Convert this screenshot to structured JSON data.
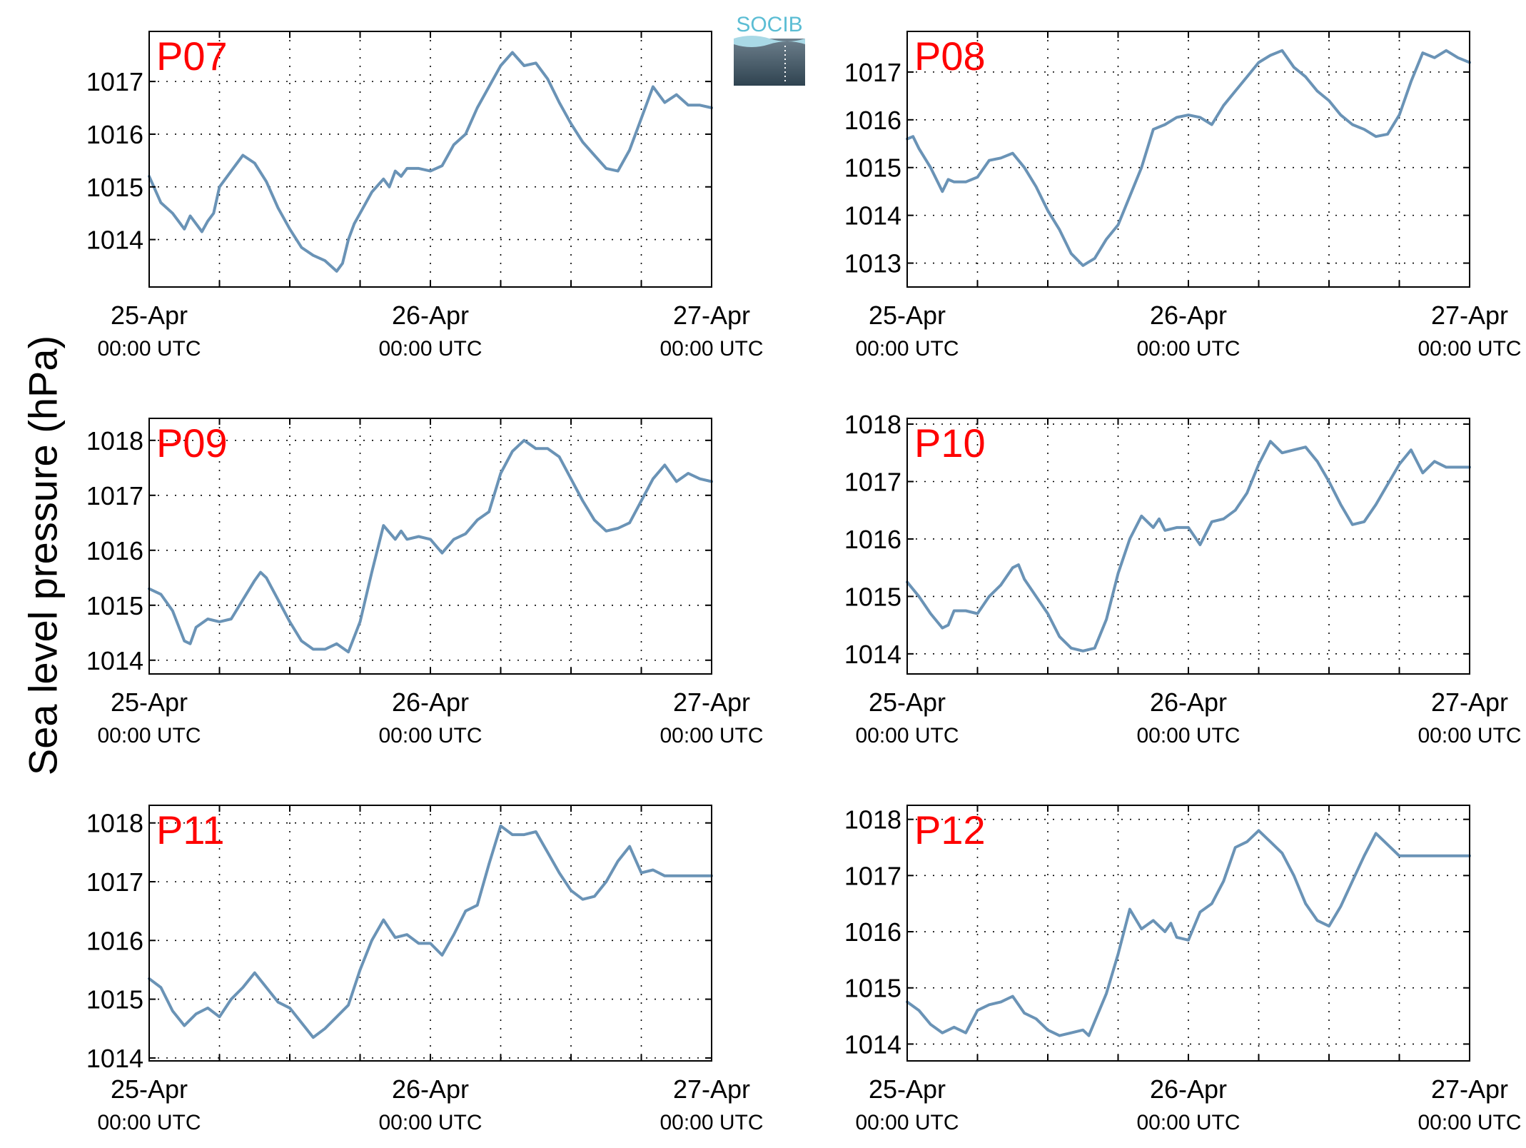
{
  "figure": {
    "ylabel": "Sea level pressure (hPa)",
    "logo": {
      "text": "SOCIB",
      "colors": {
        "text": "#5bbdd4",
        "top": "#6d7f8c",
        "bottom": "#2f4350"
      }
    }
  },
  "style": {
    "line_color": "#6a93b6",
    "label_color": "#ff0000"
  },
  "chart_data": [
    {
      "type": "line",
      "title": "P07",
      "xlabel": "",
      "ylabel": "",
      "x_range_hours": [
        0,
        48
      ],
      "ylim": [
        1013.1,
        1017.95
      ],
      "yticks": [
        1014,
        1015,
        1016,
        1017
      ],
      "xticks": [
        {
          "hours": 0,
          "date": "25-Apr",
          "time": "00:00 UTC"
        },
        {
          "hours": 24,
          "date": "26-Apr",
          "time": "00:00 UTC"
        },
        {
          "hours": 48,
          "date": "27-Apr",
          "time": "00:00 UTC"
        }
      ],
      "grid": true,
      "series": [
        {
          "x": [
            0,
            1,
            2,
            3,
            3.5,
            4,
            4.5,
            5,
            5.5,
            6,
            7,
            8,
            9,
            10,
            11,
            12,
            13,
            14,
            15,
            16,
            16.5,
            17,
            17.5,
            18,
            19,
            20,
            20.5,
            21,
            21.5,
            22,
            23,
            24,
            25,
            26,
            27,
            28,
            29,
            30,
            31,
            32,
            33,
            34,
            35,
            36,
            37,
            38,
            39,
            40,
            41,
            42,
            43,
            44,
            45,
            46,
            47,
            48
          ],
          "y": [
            1015.2,
            1014.7,
            1014.5,
            1014.2,
            1014.45,
            1014.3,
            1014.15,
            1014.35,
            1014.5,
            1015.0,
            1015.3,
            1015.6,
            1015.45,
            1015.1,
            1014.6,
            1014.2,
            1013.85,
            1013.7,
            1013.6,
            1013.4,
            1013.55,
            1014.0,
            1014.3,
            1014.5,
            1014.9,
            1015.15,
            1015.0,
            1015.3,
            1015.2,
            1015.35,
            1015.35,
            1015.3,
            1015.4,
            1015.8,
            1016.0,
            1016.5,
            1016.9,
            1017.3,
            1017.55,
            1017.3,
            1017.35,
            1017.05,
            1016.6,
            1016.2,
            1015.85,
            1015.6,
            1015.35,
            1015.3,
            1015.7,
            1016.3,
            1016.9,
            1016.6,
            1016.75,
            1016.55,
            1016.55,
            1016.5
          ]
        }
      ]
    },
    {
      "type": "line",
      "title": "P08",
      "xlabel": "",
      "ylabel": "",
      "x_range_hours": [
        0,
        48
      ],
      "ylim": [
        1012.5,
        1017.85
      ],
      "yticks": [
        1013,
        1014,
        1015,
        1016,
        1017
      ],
      "xticks": [
        {
          "hours": 0,
          "date": "25-Apr",
          "time": "00:00 UTC"
        },
        {
          "hours": 24,
          "date": "26-Apr",
          "time": "00:00 UTC"
        },
        {
          "hours": 48,
          "date": "27-Apr",
          "time": "00:00 UTC"
        }
      ],
      "grid": true,
      "series": [
        {
          "x": [
            0,
            0.5,
            1,
            2,
            3,
            3.5,
            4,
            5,
            6,
            7,
            8,
            9,
            10,
            11,
            12,
            13,
            14,
            15,
            16,
            17,
            18,
            19,
            20,
            21,
            22,
            23,
            24,
            25,
            26,
            27,
            28,
            29,
            30,
            31,
            32,
            33,
            34,
            35,
            36,
            37,
            38,
            39,
            40,
            41,
            42,
            43,
            44,
            45,
            46,
            47,
            48
          ],
          "y": [
            1015.6,
            1015.65,
            1015.4,
            1015.0,
            1014.5,
            1014.75,
            1014.7,
            1014.7,
            1014.8,
            1015.15,
            1015.2,
            1015.3,
            1015.0,
            1014.6,
            1014.1,
            1013.7,
            1013.2,
            1012.95,
            1013.1,
            1013.5,
            1013.8,
            1014.4,
            1015.0,
            1015.8,
            1015.9,
            1016.05,
            1016.1,
            1016.05,
            1015.9,
            1016.3,
            1016.6,
            1016.9,
            1017.2,
            1017.35,
            1017.45,
            1017.1,
            1016.9,
            1016.6,
            1016.4,
            1016.1,
            1015.9,
            1015.8,
            1015.65,
            1015.7,
            1016.1,
            1016.8,
            1017.4,
            1017.3,
            1017.45,
            1017.3,
            1017.2
          ]
        }
      ]
    },
    {
      "type": "line",
      "title": "P09",
      "xlabel": "",
      "ylabel": "",
      "x_range_hours": [
        0,
        48
      ],
      "ylim": [
        1013.75,
        1018.4
      ],
      "yticks": [
        1014,
        1015,
        1016,
        1017,
        1018
      ],
      "xticks": [
        {
          "hours": 0,
          "date": "25-Apr",
          "time": "00:00 UTC"
        },
        {
          "hours": 24,
          "date": "26-Apr",
          "time": "00:00 UTC"
        },
        {
          "hours": 48,
          "date": "27-Apr",
          "time": "00:00 UTC"
        }
      ],
      "grid": true,
      "series": [
        {
          "x": [
            0,
            1,
            2,
            3,
            3.5,
            4,
            5,
            6,
            7,
            8,
            9,
            9.5,
            10,
            11,
            12,
            13,
            14,
            15,
            16,
            17,
            18,
            19,
            20,
            21,
            21.5,
            22,
            23,
            24,
            25,
            26,
            27,
            28,
            29,
            30,
            31,
            32,
            33,
            34,
            35,
            36,
            37,
            38,
            39,
            40,
            41,
            42,
            43,
            44,
            45,
            46,
            47,
            48
          ],
          "y": [
            1015.3,
            1015.2,
            1014.9,
            1014.35,
            1014.3,
            1014.6,
            1014.75,
            1014.7,
            1014.75,
            1015.1,
            1015.45,
            1015.6,
            1015.5,
            1015.1,
            1014.7,
            1014.35,
            1014.2,
            1014.2,
            1014.3,
            1014.15,
            1014.7,
            1015.6,
            1016.45,
            1016.2,
            1016.35,
            1016.2,
            1016.25,
            1016.2,
            1015.95,
            1016.2,
            1016.3,
            1016.55,
            1016.7,
            1017.4,
            1017.8,
            1018.0,
            1017.85,
            1017.85,
            1017.7,
            1017.3,
            1016.9,
            1016.55,
            1016.35,
            1016.4,
            1016.5,
            1016.9,
            1017.3,
            1017.55,
            1017.25,
            1017.4,
            1017.3,
            1017.25
          ]
        }
      ]
    },
    {
      "type": "line",
      "title": "P10",
      "xlabel": "",
      "ylabel": "",
      "x_range_hours": [
        0,
        48
      ],
      "ylim": [
        1013.65,
        1018.1
      ],
      "yticks": [
        1014,
        1015,
        1016,
        1017,
        1018
      ],
      "xticks": [
        {
          "hours": 0,
          "date": "25-Apr",
          "time": "00:00 UTC"
        },
        {
          "hours": 24,
          "date": "26-Apr",
          "time": "00:00 UTC"
        },
        {
          "hours": 48,
          "date": "27-Apr",
          "time": "00:00 UTC"
        }
      ],
      "grid": true,
      "series": [
        {
          "x": [
            0,
            1,
            2,
            3,
            3.5,
            4,
            5,
            6,
            7,
            8,
            9,
            9.5,
            10,
            11,
            12,
            13,
            14,
            15,
            16,
            17,
            18,
            19,
            20,
            21,
            21.5,
            22,
            23,
            24,
            25,
            26,
            27,
            28,
            29,
            30,
            31,
            32,
            33,
            34,
            35,
            36,
            37,
            38,
            39,
            40,
            41,
            42,
            43,
            44,
            45,
            46,
            47,
            48
          ],
          "y": [
            1015.25,
            1015.0,
            1014.7,
            1014.45,
            1014.5,
            1014.75,
            1014.75,
            1014.7,
            1015.0,
            1015.2,
            1015.5,
            1015.55,
            1015.3,
            1015.0,
            1014.7,
            1014.3,
            1014.1,
            1014.05,
            1014.1,
            1014.6,
            1015.4,
            1016.0,
            1016.4,
            1016.2,
            1016.35,
            1016.15,
            1016.2,
            1016.2,
            1015.9,
            1016.3,
            1016.35,
            1016.5,
            1016.8,
            1017.3,
            1017.7,
            1017.5,
            1017.55,
            1017.6,
            1017.35,
            1017.0,
            1016.6,
            1016.25,
            1016.3,
            1016.6,
            1016.95,
            1017.3,
            1017.55,
            1017.15,
            1017.35,
            1017.25,
            1017.25,
            1017.25
          ]
        }
      ]
    },
    {
      "type": "line",
      "title": "P11",
      "xlabel": "",
      "ylabel": "",
      "x_range_hours": [
        0,
        48
      ],
      "ylim": [
        1013.95,
        1018.3
      ],
      "yticks": [
        1014,
        1015,
        1016,
        1017,
        1018
      ],
      "xticks": [
        {
          "hours": 0,
          "date": "25-Apr",
          "time": "00:00 UTC"
        },
        {
          "hours": 24,
          "date": "26-Apr",
          "time": "00:00 UTC"
        },
        {
          "hours": 48,
          "date": "27-Apr",
          "time": "00:00 UTC"
        }
      ],
      "grid": true,
      "series": [
        {
          "x": [
            0,
            1,
            2,
            3,
            4,
            5,
            6,
            7,
            8,
            9,
            10,
            11,
            12,
            13,
            14,
            15,
            16,
            17,
            18,
            19,
            20,
            20.5,
            21,
            22,
            23,
            24,
            25,
            26,
            27,
            28,
            29,
            30,
            31,
            32,
            33,
            34,
            35,
            36,
            37,
            38,
            39,
            40,
            41,
            42,
            43,
            44,
            45,
            46,
            47,
            48
          ],
          "y": [
            1015.35,
            1015.2,
            1014.8,
            1014.55,
            1014.75,
            1014.85,
            1014.7,
            1015.0,
            1015.2,
            1015.45,
            1015.2,
            1014.95,
            1014.85,
            1014.6,
            1014.35,
            1014.5,
            1014.7,
            1014.9,
            1015.5,
            1016.0,
            1016.35,
            1016.2,
            1016.05,
            1016.1,
            1015.95,
            1015.95,
            1015.75,
            1016.1,
            1016.5,
            1016.6,
            1017.3,
            1017.95,
            1017.8,
            1017.8,
            1017.85,
            1017.5,
            1017.15,
            1016.85,
            1016.7,
            1016.75,
            1017.0,
            1017.35,
            1017.6,
            1017.15,
            1017.2,
            1017.1,
            1017.1,
            1017.1,
            1017.1,
            1017.1
          ]
        }
      ]
    },
    {
      "type": "line",
      "title": "P12",
      "xlabel": "",
      "ylabel": "",
      "x_range_hours": [
        0,
        48
      ],
      "ylim": [
        1013.7,
        1018.25
      ],
      "yticks": [
        1014,
        1015,
        1016,
        1017,
        1018
      ],
      "xticks": [
        {
          "hours": 0,
          "date": "25-Apr",
          "time": "00:00 UTC"
        },
        {
          "hours": 24,
          "date": "26-Apr",
          "time": "00:00 UTC"
        },
        {
          "hours": 48,
          "date": "27-Apr",
          "time": "00:00 UTC"
        }
      ],
      "grid": true,
      "series": [
        {
          "x": [
            0,
            1,
            2,
            3,
            4,
            5,
            6,
            7,
            8,
            9,
            10,
            11,
            12,
            13,
            14,
            15,
            15.5,
            16,
            17,
            18,
            19,
            20,
            21,
            22,
            22.5,
            23,
            24,
            25,
            26,
            27,
            28,
            29,
            30,
            31,
            32,
            33,
            34,
            35,
            36,
            37,
            38,
            39,
            40,
            41,
            42,
            43,
            44,
            45,
            46,
            47,
            48
          ],
          "y": [
            1014.75,
            1014.6,
            1014.35,
            1014.2,
            1014.3,
            1014.2,
            1014.6,
            1014.7,
            1014.75,
            1014.85,
            1014.55,
            1014.45,
            1014.25,
            1014.15,
            1014.2,
            1014.25,
            1014.15,
            1014.4,
            1014.9,
            1015.6,
            1016.4,
            1016.05,
            1016.2,
            1016.0,
            1016.15,
            1015.9,
            1015.85,
            1016.35,
            1016.5,
            1016.9,
            1017.5,
            1017.6,
            1017.8,
            1017.6,
            1017.4,
            1017.0,
            1016.5,
            1016.2,
            1016.1,
            1016.45,
            1016.9,
            1017.35,
            1017.75,
            1017.55,
            1017.35,
            1017.35,
            1017.35,
            1017.35,
            1017.35,
            1017.35,
            1017.35
          ]
        }
      ]
    }
  ]
}
